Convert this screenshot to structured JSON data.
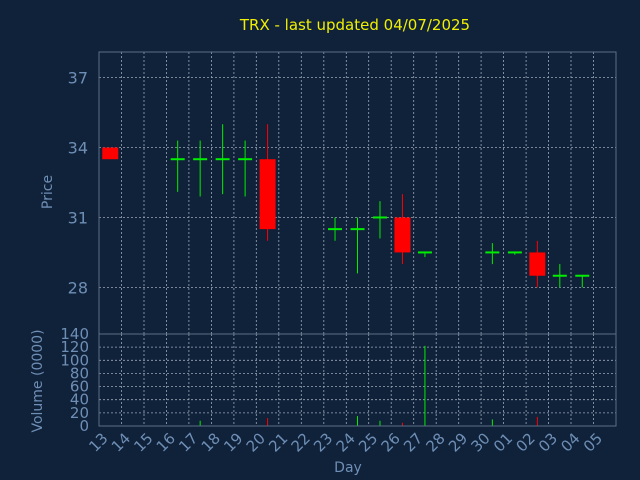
{
  "chart_data": {
    "type": "candlestick",
    "title": "TRX - last updated 04/07/2025",
    "xlabel": "Day",
    "ylabel": "Price",
    "volume_label": "Volume (0000)",
    "x": [
      "13",
      "14",
      "15",
      "16",
      "17",
      "18",
      "19",
      "20",
      "21",
      "22",
      "23",
      "24",
      "25",
      "26",
      "27",
      "28",
      "29",
      "30",
      "01",
      "02",
      "03",
      "04",
      "05"
    ],
    "ylim": [
      26,
      38.1
    ],
    "yticks": [
      28,
      31,
      34,
      37
    ],
    "volume_ylim": [
      0,
      140
    ],
    "volume_yticks": [
      0,
      20,
      40,
      60,
      80,
      100,
      120,
      140
    ],
    "grid": true,
    "colors": {
      "background": "#10213a",
      "plot_border": "#5a6e85",
      "grid": "#9aa8b8",
      "text": "#6e8fb5",
      "title": "#f0f000",
      "up": "#00ee00",
      "down": "#ff0000"
    },
    "candles": [
      {
        "x": "13",
        "open": 34.0,
        "high": 34.0,
        "low": 33.5,
        "close": 33.5
      },
      {
        "x": "16",
        "open": 33.5,
        "high": 34.3,
        "low": 32.1,
        "close": 33.5
      },
      {
        "x": "17",
        "open": 33.5,
        "high": 34.3,
        "low": 31.9,
        "close": 33.5
      },
      {
        "x": "18",
        "open": 33.5,
        "high": 35.0,
        "low": 32.0,
        "close": 33.5
      },
      {
        "x": "19",
        "open": 33.5,
        "high": 34.3,
        "low": 31.9,
        "close": 33.5
      },
      {
        "x": "20",
        "open": 33.5,
        "high": 35.0,
        "low": 30.0,
        "close": 30.5
      },
      {
        "x": "23",
        "open": 30.5,
        "high": 31.0,
        "low": 30.0,
        "close": 30.5
      },
      {
        "x": "24",
        "open": 30.5,
        "high": 31.0,
        "low": 28.6,
        "close": 30.5
      },
      {
        "x": "25",
        "open": 31.0,
        "high": 31.7,
        "low": 30.1,
        "close": 31.0
      },
      {
        "x": "26",
        "open": 31.0,
        "high": 32.0,
        "low": 29.0,
        "close": 29.5
      },
      {
        "x": "27",
        "open": 29.5,
        "high": 29.5,
        "low": 29.3,
        "close": 29.5
      },
      {
        "x": "30",
        "open": 29.5,
        "high": 29.9,
        "low": 29.0,
        "close": 29.5
      },
      {
        "x": "01",
        "open": 29.5,
        "high": 29.5,
        "low": 29.4,
        "close": 29.5
      },
      {
        "x": "02",
        "open": 29.5,
        "high": 30.0,
        "low": 28.0,
        "close": 28.5
      },
      {
        "x": "03",
        "open": 28.5,
        "high": 29.0,
        "low": 28.0,
        "close": 28.5
      },
      {
        "x": "04",
        "open": 28.5,
        "high": 28.5,
        "low": 28.0,
        "close": 28.5
      }
    ],
    "volume": [
      {
        "x": "17",
        "value": 8
      },
      {
        "x": "20",
        "value": 12
      },
      {
        "x": "24",
        "value": 15
      },
      {
        "x": "25",
        "value": 8
      },
      {
        "x": "26",
        "value": 5
      },
      {
        "x": "27",
        "value": 122
      },
      {
        "x": "30",
        "value": 10
      },
      {
        "x": "02",
        "value": 14
      }
    ]
  }
}
